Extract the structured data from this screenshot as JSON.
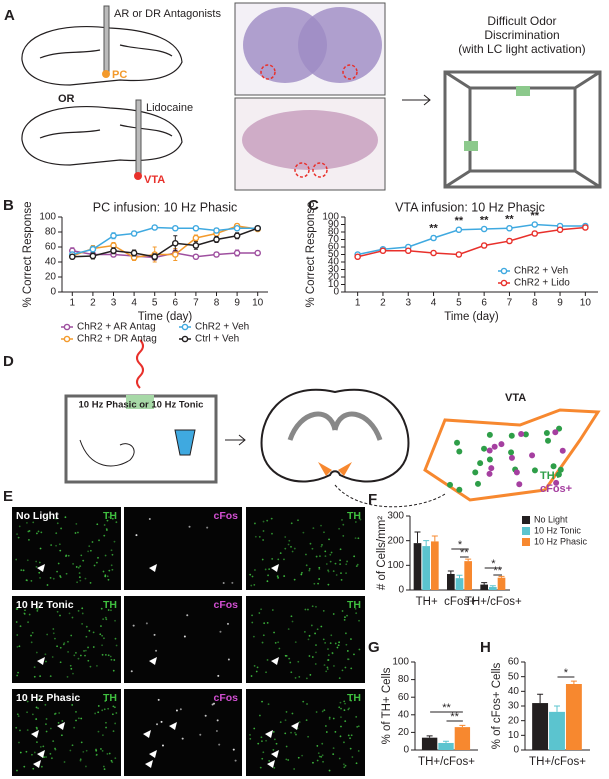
{
  "figure": {
    "panel_labels": [
      "A",
      "B",
      "C",
      "D",
      "E",
      "F",
      "G",
      "H"
    ],
    "a": {
      "antagonists": "AR or DR Antagonists",
      "pc": "PC",
      "or": "OR",
      "lidocaine": "Lidocaine",
      "vta": "VTA",
      "task": [
        "Difficult Odor",
        "Discrimination",
        "(with LC light activation)"
      ]
    },
    "d": {
      "stim": "10 Hz Phasic or 10 Hz Tonic",
      "vta": "VTA",
      "markers": [
        "TH+",
        "cFos+"
      ]
    },
    "e": {
      "rows": [
        "No Light",
        "10 Hz Tonic",
        "10 Hz Phasic"
      ],
      "channels": [
        "cFos",
        "TH"
      ]
    }
  },
  "chart_data": [
    {
      "type": "line",
      "title": "PC infusion: 10 Hz Phasic",
      "xlabel": "Time (day)",
      "ylabel": "% Correct Response",
      "x": [
        1,
        2,
        3,
        4,
        5,
        6,
        7,
        8,
        9,
        10
      ],
      "xlim": [
        0.5,
        10.5
      ],
      "xticks": [
        1,
        2,
        3,
        4,
        5,
        6,
        7,
        8,
        9,
        10
      ],
      "ylim": [
        0,
        100
      ],
      "yticks": [
        0,
        20,
        40,
        60,
        80,
        100
      ],
      "series": [
        {
          "name": "ChR2 + AR Antag",
          "color": "#9e4f9f",
          "values": [
            55,
            50,
            50,
            48,
            46,
            52,
            47,
            50,
            52,
            52
          ],
          "errors": [
            4,
            3,
            3,
            3,
            3,
            4,
            3,
            3,
            4,
            2
          ]
        },
        {
          "name": "ChR2 + DR Antag",
          "color": "#f39a2c",
          "values": [
            48,
            58,
            62,
            46,
            50,
            50,
            72,
            78,
            88,
            84
          ],
          "errors": [
            3,
            4,
            4,
            4,
            10,
            8,
            4,
            4,
            3,
            3
          ]
        },
        {
          "name": "ChR2 + Veh",
          "color": "#3fa9e0",
          "values": [
            50,
            57,
            75,
            78,
            86,
            85,
            85,
            82,
            85,
            85
          ],
          "errors": [
            3,
            4,
            4,
            3,
            2,
            2,
            2,
            3,
            2,
            2
          ]
        },
        {
          "name": "Ctrl + Veh",
          "color": "#231f20",
          "values": [
            47,
            48,
            55,
            52,
            47,
            65,
            62,
            70,
            75,
            85
          ],
          "errors": [
            3,
            4,
            4,
            4,
            4,
            10,
            5,
            4,
            4,
            3
          ]
        }
      ]
    },
    {
      "type": "line",
      "title": "VTA infusion: 10 Hz Phasic",
      "xlabel": "Time (day)",
      "ylabel": "% Correct Response",
      "x": [
        1,
        2,
        3,
        4,
        5,
        6,
        7,
        8,
        9,
        10
      ],
      "xlim": [
        0.5,
        10.5
      ],
      "xticks": [
        1,
        2,
        3,
        4,
        5,
        6,
        7,
        8,
        9,
        10
      ],
      "ylim": [
        0,
        100
      ],
      "yticks": [
        0,
        10,
        20,
        30,
        40,
        50,
        60,
        70,
        80,
        90,
        100
      ],
      "significance": [
        null,
        null,
        null,
        "**",
        "**",
        "**",
        "**",
        "**",
        null,
        null
      ],
      "series": [
        {
          "name": "ChR2 + Veh",
          "color": "#3fa9e0",
          "values": [
            50,
            57,
            60,
            72,
            83,
            84,
            85,
            90,
            88,
            88
          ],
          "errors": [
            2,
            2,
            2,
            3,
            2,
            2,
            2,
            2,
            2,
            2
          ]
        },
        {
          "name": "ChR2 + Lido",
          "color": "#e8302b",
          "values": [
            47,
            55,
            55,
            52,
            50,
            62,
            68,
            78,
            83,
            86
          ],
          "errors": [
            2,
            2,
            2,
            2,
            2,
            3,
            3,
            3,
            2,
            2
          ]
        }
      ]
    },
    {
      "type": "bar",
      "ylabel": "# of Cells/mm²",
      "categories": [
        "TH+",
        "cFos+",
        "TH+/cFos+"
      ],
      "ylim": [
        0,
        300
      ],
      "yticks": [
        0,
        100,
        200,
        300
      ],
      "annotations": [
        "*",
        "**",
        "*",
        "**"
      ],
      "series": [
        {
          "name": "No Light",
          "color": "#231f20",
          "values": [
            190,
            65,
            22
          ],
          "errors": [
            45,
            12,
            8
          ]
        },
        {
          "name": "10 Hz Tonic",
          "color": "#5bc4cf",
          "values": [
            178,
            48,
            12
          ],
          "errors": [
            22,
            12,
            5
          ]
        },
        {
          "name": "10 Hz Phasic",
          "color": "#f7882f",
          "values": [
            197,
            117,
            50
          ],
          "errors": [
            22,
            8,
            5
          ]
        }
      ]
    },
    {
      "type": "bar",
      "ylabel": "% of TH+ Cells",
      "categories": [
        "TH+/cFos+"
      ],
      "ylim": [
        0,
        100
      ],
      "yticks": [
        0,
        20,
        40,
        60,
        80,
        100
      ],
      "annotations": [
        "**",
        "**"
      ],
      "series": [
        {
          "name": "No Light",
          "color": "#231f20",
          "values": [
            14
          ],
          "errors": [
            2
          ]
        },
        {
          "name": "10 Hz Tonic",
          "color": "#5bc4cf",
          "values": [
            8
          ],
          "errors": [
            2
          ]
        },
        {
          "name": "10 Hz Phasic",
          "color": "#f7882f",
          "values": [
            26
          ],
          "errors": [
            2
          ]
        }
      ]
    },
    {
      "type": "bar",
      "ylabel": "% of cFos+ Cells",
      "categories": [
        "TH+/cFos+"
      ],
      "ylim": [
        0,
        60
      ],
      "yticks": [
        0,
        10,
        20,
        30,
        40,
        50,
        60
      ],
      "annotations": [
        "*"
      ],
      "series": [
        {
          "name": "No Light",
          "color": "#231f20",
          "values": [
            32
          ],
          "errors": [
            6
          ]
        },
        {
          "name": "10 Hz Tonic",
          "color": "#5bc4cf",
          "values": [
            26
          ],
          "errors": [
            4
          ]
        },
        {
          "name": "10 Hz Phasic",
          "color": "#f7882f",
          "values": [
            45
          ],
          "errors": [
            2
          ]
        }
      ]
    }
  ]
}
